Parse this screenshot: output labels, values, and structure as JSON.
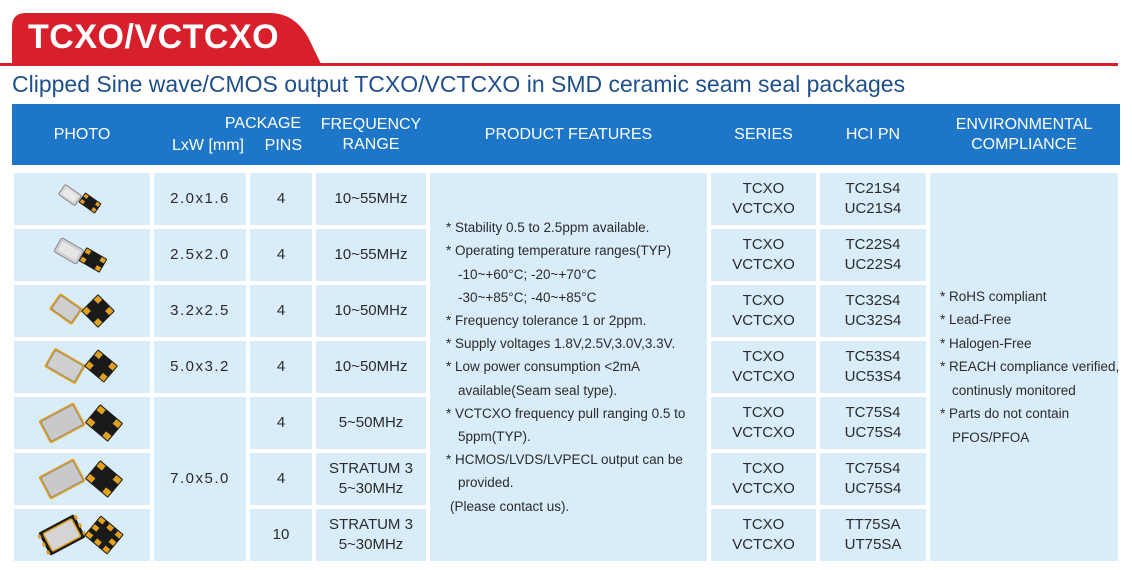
{
  "title": "TCXO/VCTCXO",
  "subtitle": "Clipped Sine wave/CMOS output TCXO/VCTCXO in SMD ceramic seam seal packages",
  "colors": {
    "brand_red": "#d8202c",
    "header_blue": "#1d76c8",
    "cell_bg": "#d9ecf9",
    "subtitle_blue": "#1f4f8a"
  },
  "headers": {
    "photo": "PHOTO",
    "package": "PACKAGE",
    "lxw": "LxW [mm]",
    "pins": "PINS",
    "freq_line1": "FREQUENCY",
    "freq_line2": "RANGE",
    "features": "PRODUCT FEATURES",
    "series": "SERIES",
    "hci_pn": "HCI PN",
    "env_line1": "ENVIRONMENTAL",
    "env_line2": "COMPLIANCE"
  },
  "rows": [
    {
      "photo": "crystal-2016-icon",
      "size": "2.0x1.6",
      "pins": "4",
      "freq1": "10~55MHz",
      "freq2": "",
      "series1": "TCXO",
      "series2": "VCTCXO",
      "pn1": "TC21S4",
      "pn2": "UC21S4"
    },
    {
      "photo": "crystal-2520-icon",
      "size": "2.5x2.0",
      "pins": "4",
      "freq1": "10~55MHz",
      "freq2": "",
      "series1": "TCXO",
      "series2": "VCTCXO",
      "pn1": "TC22S4",
      "pn2": "UC22S4"
    },
    {
      "photo": "crystal-3225-icon",
      "size": "3.2x2.5",
      "pins": "4",
      "freq1": "10~50MHz",
      "freq2": "",
      "series1": "TCXO",
      "series2": "VCTCXO",
      "pn1": "TC32S4",
      "pn2": "UC32S4"
    },
    {
      "photo": "crystal-5032-icon",
      "size": "5.0x3.2",
      "pins": "4",
      "freq1": "10~50MHz",
      "freq2": "",
      "series1": "TCXO",
      "series2": "VCTCXO",
      "pn1": "TC53S4",
      "pn2": "UC53S4"
    },
    {
      "photo": "crystal-7050-icon",
      "size": "7.0x5.0",
      "pins": "4",
      "freq1": "5~50MHz",
      "freq2": "",
      "series1": "TCXO",
      "series2": "VCTCXO",
      "pn1": "TC75S4",
      "pn2": "UC75S4"
    },
    {
      "photo": "crystal-7050-icon",
      "size": "",
      "pins": "4",
      "freq1": "STRATUM 3",
      "freq2": "5~30MHz",
      "series1": "TCXO",
      "series2": "VCTCXO",
      "pn1": "TC75S4",
      "pn2": "UC75S4"
    },
    {
      "photo": "crystal-7050-10pin-icon",
      "size": "",
      "pins": "10",
      "freq1": "STRATUM 3",
      "freq2": "5~30MHz",
      "series1": "TCXO",
      "series2": "VCTCXO",
      "pn1": "TT75SA",
      "pn2": "UT75SA"
    }
  ],
  "features": [
    "* Stability 0.5 to 2.5ppm available.",
    "* Operating temperature ranges(TYP)",
    "-10~+60°C;  -20~+70°C",
    "-30~+85°C;  -40~+85°C",
    "* Frequency tolerance 1 or 2ppm.",
    "* Supply voltages 1.8V,2.5V,3.0V,3.3V.",
    "* Low power consumption <2mA",
    "available(Seam seal type).",
    "* VCTCXO frequency pull ranging 0.5 to",
    "5ppm(TYP).",
    "* HCMOS/LVDS/LVPECL output can be",
    "provided.",
    "(Please contact us)."
  ],
  "environmental": [
    "* RoHS compliant",
    "* Lead-Free",
    "* Halogen-Free",
    "* REACH compliance verified,",
    "continusly monitored",
    "* Parts do not contain",
    "PFOS/PFOA"
  ]
}
